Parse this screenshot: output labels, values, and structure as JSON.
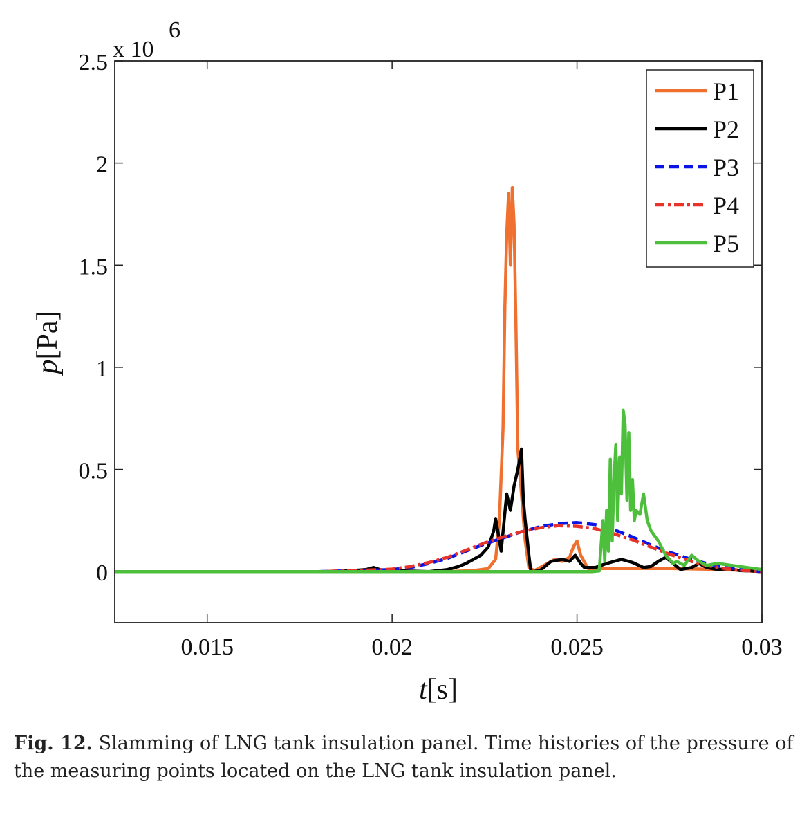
{
  "chart_data": {
    "type": "line",
    "xlabel": "t[s]",
    "ylabel": "p[Pa]",
    "xlim": [
      0.0125,
      0.03
    ],
    "ylim": [
      -250000,
      2500000
    ],
    "y_multiplier_label": "x 10",
    "y_multiplier_exp": "6",
    "xticks": [
      0.015,
      0.02,
      0.025,
      0.03
    ],
    "xtick_labels": [
      "0.015",
      "0.02",
      "0.025",
      "0.03"
    ],
    "yticks": [
      0,
      500000,
      1000000,
      1500000,
      2000000,
      2500000
    ],
    "ytick_labels": [
      "0",
      "0.5",
      "1",
      "1.5",
      "2",
      "2.5"
    ],
    "grid": false,
    "legend_position": "top-right",
    "series": [
      {
        "name": "P1",
        "color": "#f07030",
        "style": "solid",
        "x": [
          0.0125,
          0.0215,
          0.0222,
          0.0226,
          0.0228,
          0.0229,
          0.023,
          0.02305,
          0.0231,
          0.02315,
          0.0232,
          0.02325,
          0.0233,
          0.02335,
          0.0234,
          0.0236,
          0.0237,
          0.0238,
          0.02385,
          0.024,
          0.0244,
          0.0246,
          0.0248,
          0.0249,
          0.025,
          0.0251,
          0.0253,
          0.026,
          0.0275,
          0.029,
          0.03
        ],
        "y": [
          0,
          0,
          5000,
          15000,
          60000,
          250000,
          700000,
          1300000,
          1650000,
          1850000,
          1500000,
          1880000,
          1700000,
          1200000,
          600000,
          150000,
          20000,
          10000,
          5000,
          20000,
          60000,
          50000,
          70000,
          120000,
          150000,
          80000,
          15000,
          15000,
          15000,
          10000,
          0
        ]
      },
      {
        "name": "P2",
        "color": "#000000",
        "style": "solid",
        "x": [
          0.0125,
          0.0185,
          0.0193,
          0.0195,
          0.0197,
          0.02,
          0.021,
          0.0215,
          0.0218,
          0.022,
          0.0222,
          0.0224,
          0.0226,
          0.02275,
          0.0228,
          0.02295,
          0.0231,
          0.0232,
          0.0233,
          0.0234,
          0.0235,
          0.02355,
          0.0236,
          0.0237,
          0.02375,
          0.0238,
          0.024,
          0.0243,
          0.0246,
          0.0248,
          0.02495,
          0.0251,
          0.0252,
          0.0255,
          0.0258,
          0.0262,
          0.0265,
          0.0268,
          0.027,
          0.0272,
          0.0274,
          0.0276,
          0.0278,
          0.0281,
          0.0283,
          0.0285,
          0.0288,
          0.0291,
          0.0294,
          0.0297,
          0.03
        ],
        "y": [
          0,
          0,
          10000,
          20000,
          8000,
          5000,
          0,
          10000,
          25000,
          40000,
          60000,
          80000,
          120000,
          200000,
          260000,
          100000,
          380000,
          300000,
          420000,
          500000,
          600000,
          350000,
          250000,
          80000,
          5000,
          0,
          5000,
          50000,
          60000,
          50000,
          80000,
          40000,
          20000,
          20000,
          40000,
          60000,
          45000,
          20000,
          25000,
          50000,
          70000,
          40000,
          10000,
          20000,
          40000,
          20000,
          10000,
          15000,
          5000,
          3000,
          0
        ]
      },
      {
        "name": "P3",
        "color": "#0a14e6",
        "style": "dashed",
        "x": [
          0.0125,
          0.018,
          0.019,
          0.02,
          0.0205,
          0.021,
          0.0215,
          0.022,
          0.0225,
          0.023,
          0.0235,
          0.024,
          0.0245,
          0.025,
          0.0255,
          0.026,
          0.0265,
          0.027,
          0.0275,
          0.028,
          0.0285,
          0.029,
          0.0295,
          0.03
        ],
        "y": [
          0,
          0,
          5000,
          10000,
          20000,
          40000,
          65000,
          100000,
          135000,
          165000,
          195000,
          220000,
          235000,
          240000,
          230000,
          205000,
          170000,
          130000,
          95000,
          65000,
          40000,
          20000,
          8000,
          0
        ]
      },
      {
        "name": "P4",
        "color": "#e8332a",
        "style": "dashdot",
        "x": [
          0.0125,
          0.018,
          0.019,
          0.02,
          0.0205,
          0.021,
          0.0215,
          0.022,
          0.0225,
          0.023,
          0.0235,
          0.024,
          0.0245,
          0.025,
          0.0255,
          0.026,
          0.0265,
          0.027,
          0.0275,
          0.028,
          0.0285,
          0.029,
          0.0295,
          0.03
        ],
        "y": [
          0,
          0,
          5000,
          12000,
          25000,
          45000,
          70000,
          105000,
          140000,
          170000,
          195000,
          215000,
          225000,
          222000,
          210000,
          185000,
          155000,
          120000,
          85000,
          55000,
          30000,
          15000,
          5000,
          0
        ]
      },
      {
        "name": "P5",
        "color": "#4dbf3c",
        "style": "solid",
        "x": [
          0.0125,
          0.0254,
          0.0256,
          0.0257,
          0.02575,
          0.0258,
          0.02585,
          0.0259,
          0.02595,
          0.026,
          0.02605,
          0.0261,
          0.02615,
          0.0262,
          0.02625,
          0.0263,
          0.02635,
          0.0264,
          0.02645,
          0.0265,
          0.02655,
          0.0266,
          0.0267,
          0.0268,
          0.0269,
          0.027,
          0.0272,
          0.0274,
          0.0276,
          0.0277,
          0.0279,
          0.0281,
          0.0283,
          0.0285,
          0.0288,
          0.0292,
          0.0296,
          0.03
        ],
        "y": [
          0,
          0,
          3000,
          250000,
          50000,
          300000,
          100000,
          550000,
          150000,
          450000,
          620000,
          250000,
          560000,
          380000,
          790000,
          720000,
          350000,
          680000,
          300000,
          450000,
          250000,
          300000,
          280000,
          380000,
          250000,
          200000,
          150000,
          80000,
          40000,
          50000,
          30000,
          80000,
          50000,
          30000,
          40000,
          30000,
          20000,
          10000
        ]
      }
    ]
  },
  "caption": {
    "label": "Fig. 12.",
    "text": "Slamming of LNG tank insulation panel. Time histories of the pressure of the measuring points located on the LNG tank insulation panel."
  }
}
